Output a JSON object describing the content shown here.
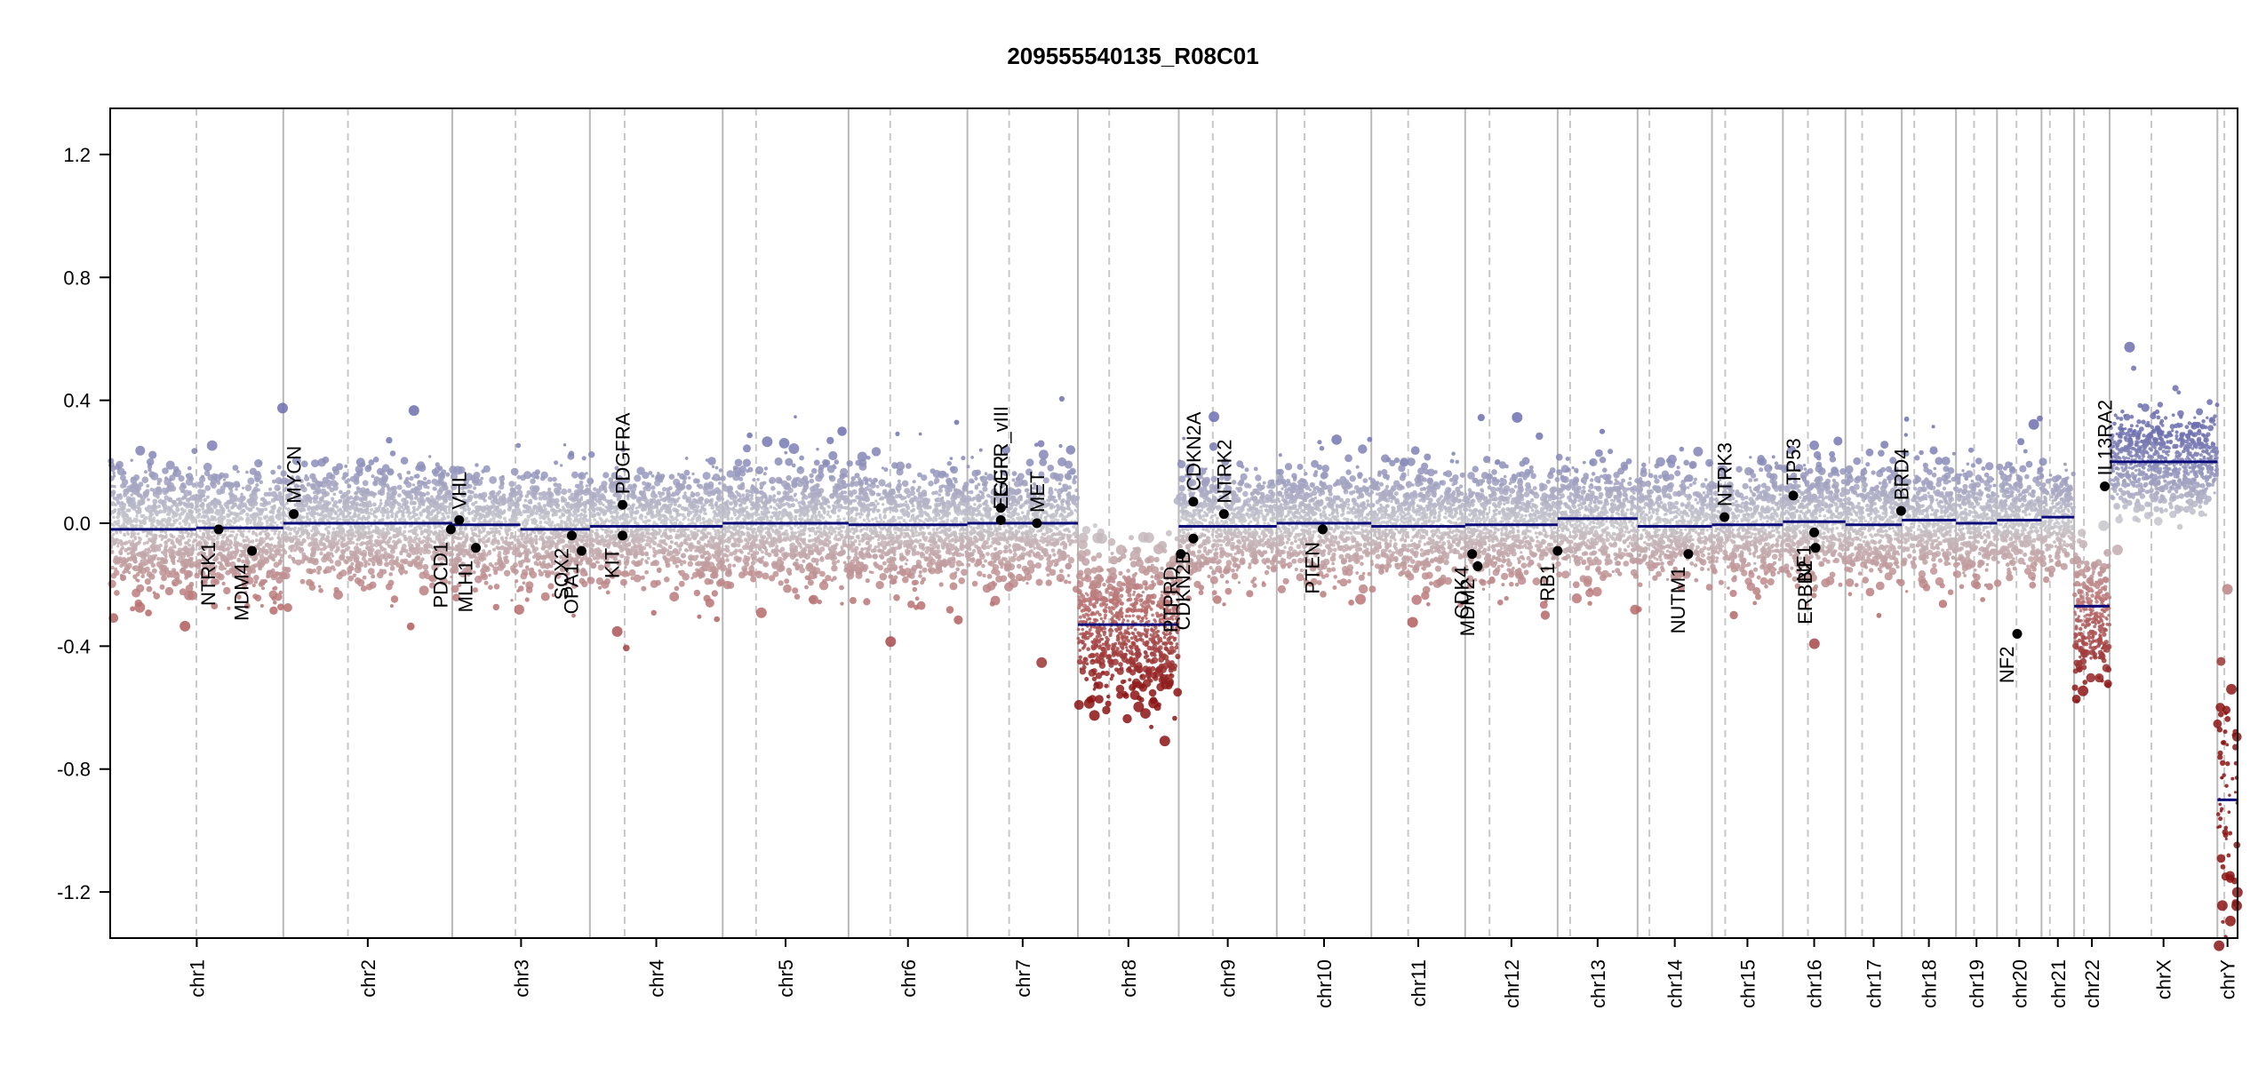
{
  "chart_data": {
    "type": "scatter",
    "title": "209555540135_R08C01",
    "xlabel": "",
    "ylabel": "",
    "ylim": [
      -1.35,
      1.35
    ],
    "yticks": [
      "1.2",
      "0.8",
      "0.4",
      "0.0",
      "-0.4",
      "-0.8",
      "-1.2"
    ],
    "ytick_values": [
      1.2,
      0.8,
      0.4,
      0.0,
      -0.4,
      -0.8,
      -1.2
    ],
    "x_range": [
      0,
      3060
    ],
    "chromosomes": [
      {
        "name": "chr1",
        "start": 0,
        "end": 249,
        "centro": 124,
        "seg_mean": -0.02,
        "spread": 0.09
      },
      {
        "name": "chr2",
        "start": 249,
        "end": 492,
        "centro": 93,
        "seg_mean": 0.0,
        "spread": 0.08
      },
      {
        "name": "chr3",
        "start": 492,
        "end": 690,
        "centro": 91,
        "seg_mean": -0.02,
        "spread": 0.08
      },
      {
        "name": "chr4",
        "start": 690,
        "end": 881,
        "centro": 50,
        "seg_mean": -0.01,
        "spread": 0.08
      },
      {
        "name": "chr5",
        "start": 881,
        "end": 1062,
        "centro": 48,
        "seg_mean": 0.0,
        "spread": 0.08
      },
      {
        "name": "chr6",
        "start": 1062,
        "end": 1233,
        "centro": 60,
        "seg_mean": -0.01,
        "spread": 0.08
      },
      {
        "name": "chr7",
        "start": 1233,
        "end": 1392,
        "centro": 60,
        "seg_mean": 0.0,
        "spread": 0.08
      },
      {
        "name": "chr8",
        "start": 1392,
        "end": 1537,
        "centro": 45,
        "seg_mean": -0.33,
        "spread": 0.11
      },
      {
        "name": "chr9",
        "start": 1537,
        "end": 1678,
        "centro": 49,
        "seg_mean": -0.01,
        "spread": 0.08
      },
      {
        "name": "chr10",
        "start": 1678,
        "end": 1814,
        "centro": 40,
        "seg_mean": 0.0,
        "spread": 0.08
      },
      {
        "name": "chr11",
        "start": 1814,
        "end": 1949,
        "centro": 53,
        "seg_mean": -0.01,
        "spread": 0.08
      },
      {
        "name": "chr12",
        "start": 1949,
        "end": 2082,
        "centro": 35,
        "seg_mean": -0.01,
        "spread": 0.08
      },
      {
        "name": "chr13",
        "start": 2082,
        "end": 2197,
        "centro": 18,
        "seg_mean": 0.01,
        "spread": 0.08
      },
      {
        "name": "chr14",
        "start": 2197,
        "end": 2304,
        "centro": 17,
        "seg_mean": -0.01,
        "spread": 0.08
      },
      {
        "name": "chr15",
        "start": 2304,
        "end": 2406,
        "centro": 19,
        "seg_mean": -0.01,
        "spread": 0.08
      },
      {
        "name": "chr16",
        "start": 2406,
        "end": 2496,
        "centro": 36,
        "seg_mean": 0.0,
        "spread": 0.08
      },
      {
        "name": "chr17",
        "start": 2496,
        "end": 2577,
        "centro": 24,
        "seg_mean": 0.0,
        "spread": 0.08
      },
      {
        "name": "chr18",
        "start": 2577,
        "end": 2655,
        "centro": 18,
        "seg_mean": 0.01,
        "spread": 0.08
      },
      {
        "name": "chr19",
        "start": 2655,
        "end": 2714,
        "centro": 26,
        "seg_mean": 0.0,
        "spread": 0.08
      },
      {
        "name": "chr20",
        "start": 2714,
        "end": 2778,
        "centro": 28,
        "seg_mean": 0.01,
        "spread": 0.08
      },
      {
        "name": "chr21",
        "start": 2778,
        "end": 2825,
        "centro": 12,
        "seg_mean": 0.02,
        "spread": 0.07
      },
      {
        "name": "chr22",
        "start": 2825,
        "end": 2876,
        "centro": 14,
        "seg_mean": -0.3,
        "spread": 0.1
      },
      {
        "name": "chrX",
        "start": 2876,
        "end": 3031,
        "centro": 60,
        "seg_mean": 0.2,
        "spread": 0.07
      },
      {
        "name": "chrY",
        "start": 3031,
        "end": 3060,
        "centro": 10,
        "seg_mean": -0.9,
        "spread": 0.15
      }
    ],
    "segments": [
      {
        "x0": 0,
        "x1": 124,
        "y": -0.02
      },
      {
        "x0": 124,
        "x1": 249,
        "y": -0.015
      },
      {
        "x0": 249,
        "x1": 492,
        "y": 0.0
      },
      {
        "x0": 492,
        "x1": 590,
        "y": -0.005
      },
      {
        "x0": 590,
        "x1": 690,
        "y": -0.02
      },
      {
        "x0": 690,
        "x1": 881,
        "y": -0.01
      },
      {
        "x0": 881,
        "x1": 1062,
        "y": 0.0
      },
      {
        "x0": 1062,
        "x1": 1233,
        "y": -0.005
      },
      {
        "x0": 1233,
        "x1": 1392,
        "y": 0.0
      },
      {
        "x0": 1392,
        "x1": 1537,
        "y": -0.33
      },
      {
        "x0": 1537,
        "x1": 1678,
        "y": -0.01
      },
      {
        "x0": 1678,
        "x1": 1814,
        "y": 0.0
      },
      {
        "x0": 1814,
        "x1": 1949,
        "y": -0.01
      },
      {
        "x0": 1949,
        "x1": 2082,
        "y": -0.005
      },
      {
        "x0": 2082,
        "x1": 2197,
        "y": 0.015
      },
      {
        "x0": 2197,
        "x1": 2304,
        "y": -0.01
      },
      {
        "x0": 2304,
        "x1": 2406,
        "y": -0.005
      },
      {
        "x0": 2406,
        "x1": 2496,
        "y": 0.005
      },
      {
        "x0": 2496,
        "x1": 2577,
        "y": -0.005
      },
      {
        "x0": 2577,
        "x1": 2655,
        "y": 0.01
      },
      {
        "x0": 2655,
        "x1": 2714,
        "y": 0.0
      },
      {
        "x0": 2714,
        "x1": 2778,
        "y": 0.01
      },
      {
        "x0": 2778,
        "x1": 2825,
        "y": 0.02
      },
      {
        "x0": 2825,
        "x1": 2876,
        "y": -0.27
      },
      {
        "x0": 2876,
        "x1": 3031,
        "y": 0.2
      },
      {
        "x0": 3031,
        "x1": 3060,
        "y": -0.9
      }
    ],
    "genes": [
      {
        "name": "NTRK1",
        "x": 156,
        "y": -0.02,
        "side": "below"
      },
      {
        "name": "MDM4",
        "x": 204,
        "y": -0.09,
        "side": "below"
      },
      {
        "name": "MYCN",
        "x": 264,
        "y": 0.03,
        "side": "above"
      },
      {
        "name": "VHL",
        "x": 502,
        "y": 0.01,
        "side": "above"
      },
      {
        "name": "PDCD1",
        "x": 490,
        "y": -0.02,
        "side": "below"
      },
      {
        "name": "MLH1",
        "x": 526,
        "y": -0.08,
        "side": "below"
      },
      {
        "name": "SOX2",
        "x": 664,
        "y": -0.04,
        "side": "below"
      },
      {
        "name": "OPA1",
        "x": 678,
        "y": -0.09,
        "side": "below"
      },
      {
        "name": "PDGFRA",
        "x": 737,
        "y": 0.06,
        "side": "above"
      },
      {
        "name": "KIT",
        "x": 737,
        "y": -0.04,
        "side": "below"
      },
      {
        "name": "EGFR_vIII",
        "x": 1281,
        "y": 0.05,
        "side": "above"
      },
      {
        "name": "EGFR",
        "x": 1281,
        "y": 0.01,
        "side": "above"
      },
      {
        "name": "MET",
        "x": 1333,
        "y": 0.0,
        "side": "above"
      },
      {
        "name": "CDKN2A",
        "x": 1558,
        "y": 0.07,
        "side": "above"
      },
      {
        "name": "CDKN2B",
        "x": 1558,
        "y": -0.05,
        "side": "below"
      },
      {
        "name": "PTPRD",
        "x": 1540,
        "y": -0.1,
        "side": "below"
      },
      {
        "name": "NTRK2",
        "x": 1602,
        "y": 0.03,
        "side": "above"
      },
      {
        "name": "PTEN",
        "x": 1744,
        "y": -0.02,
        "side": "below"
      },
      {
        "name": "CDK4",
        "x": 1959,
        "y": -0.1,
        "side": "below"
      },
      {
        "name": "MDM2",
        "x": 1967,
        "y": -0.14,
        "side": "below"
      },
      {
        "name": "RB1",
        "x": 2082,
        "y": -0.09,
        "side": "below"
      },
      {
        "name": "NUTM1",
        "x": 2270,
        "y": -0.1,
        "side": "below"
      },
      {
        "name": "NTRK3",
        "x": 2322,
        "y": 0.02,
        "side": "above"
      },
      {
        "name": "TP53",
        "x": 2421,
        "y": 0.09,
        "side": "above"
      },
      {
        "name": "NF1",
        "x": 2451,
        "y": -0.03,
        "side": "below"
      },
      {
        "name": "ERBB2",
        "x": 2453,
        "y": -0.08,
        "side": "below"
      },
      {
        "name": "BRD4",
        "x": 2576,
        "y": 0.04,
        "side": "above"
      },
      {
        "name": "NF2",
        "x": 2743,
        "y": -0.36,
        "side": "below"
      },
      {
        "name": "IL13RA2",
        "x": 2869,
        "y": 0.12,
        "side": "above"
      }
    ]
  }
}
